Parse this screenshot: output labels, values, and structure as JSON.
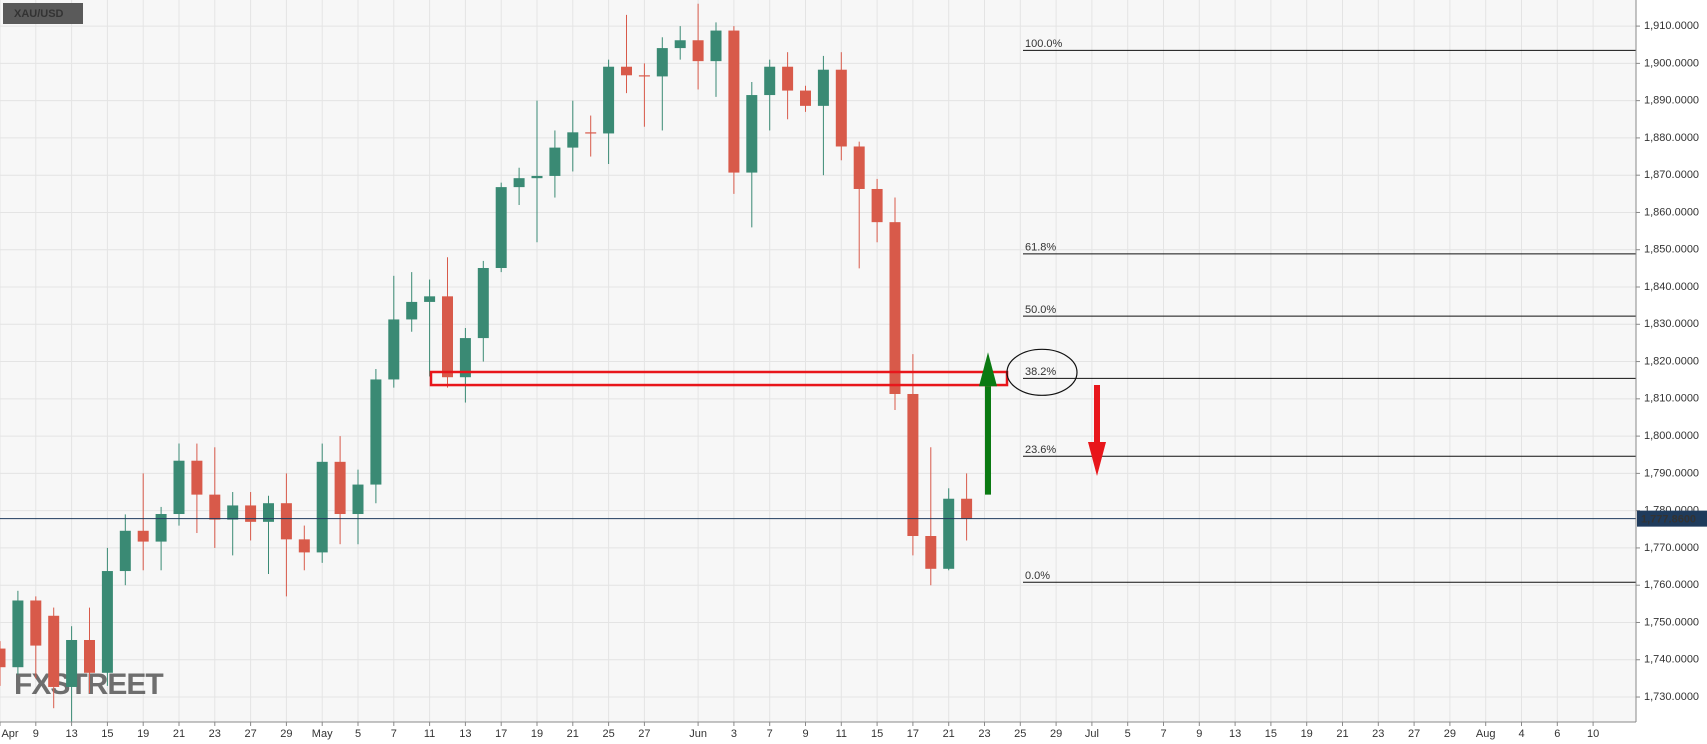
{
  "chart_data": {
    "type": "candlestick",
    "symbol": "XAU/USD",
    "watermark": [
      "FX",
      "STREET"
    ],
    "categories": [
      "Apr",
      null,
      "9",
      null,
      "13",
      null,
      "15",
      null,
      "19",
      null,
      "21",
      null,
      "23",
      null,
      "27",
      null,
      "29",
      null,
      "May",
      null,
      "5",
      null,
      "7",
      null,
      "11",
      null,
      "13",
      null,
      "17",
      null,
      "19",
      null,
      "21",
      null,
      "25",
      null,
      "27",
      null,
      null,
      "Jun",
      null,
      "3",
      null,
      "7",
      null,
      "9",
      null,
      "11",
      null,
      "15",
      null,
      "17",
      null,
      "21",
      null,
      "23",
      null,
      "25",
      null,
      "29",
      null,
      "Jul",
      null,
      "5",
      null,
      "7",
      null,
      "9",
      null,
      "13",
      null,
      "15",
      null,
      "19",
      null,
      "21",
      null,
      "23",
      null,
      "27",
      null,
      "29",
      null,
      "Aug",
      null,
      "4",
      null,
      "6",
      null,
      "10",
      null
    ],
    "open": [
      1743.0,
      1738.0,
      1755.9,
      1751.8,
      1732.7,
      1745.3,
      1736.5,
      1763.8,
      1774.6,
      1771.7,
      1779.1,
      1793.4,
      1784.3,
      1777.6,
      1781.4,
      1777.0,
      1782.0,
      1772.3,
      1768.8,
      1793.1,
      1779.1,
      1787.0,
      1815.2,
      1831.3,
      1836.0,
      1837.5,
      1815.8,
      1826.3,
      1845.1,
      1866.8,
      1869.2,
      1869.8,
      1877.4,
      1881.5,
      1881.2,
      1899.1,
      1896.8,
      1896.5,
      1904.1,
      1906.2,
      1900.6,
      1908.8,
      1870.7,
      1891.5,
      1899.1,
      1892.7,
      1888.6,
      1898.3,
      1877.7,
      1866.3,
      1857.4,
      1811.3,
      1773.2,
      1764.4,
      1783.2,
      null,
      null,
      null,
      null,
      null,
      null,
      null,
      null,
      null,
      null,
      null,
      null,
      null,
      null,
      null,
      null,
      null,
      null,
      null,
      null,
      null,
      null,
      null,
      null,
      null,
      null,
      null,
      null,
      null,
      null,
      null,
      null,
      null,
      null,
      null,
      null
    ],
    "high": [
      1745,
      1758.5,
      1757,
      1754,
      1749,
      1754,
      1770,
      1779,
      1790,
      1781,
      1798,
      1798,
      1797,
      1785,
      1785,
      1784,
      1790,
      1776,
      1798,
      1800,
      1791,
      1818,
      1843,
      1844,
      1842,
      1848,
      1829,
      1847,
      1868,
      1872,
      1890,
      1882,
      1890,
      1886,
      1901,
      1913,
      1900,
      1907,
      1910,
      1916,
      1911,
      1910,
      1895,
      1901,
      1903,
      1894,
      1902,
      1903,
      1879,
      1869,
      1864,
      1822,
      1797,
      1786,
      1790,
      null,
      null,
      null,
      null,
      null,
      null,
      null,
      null,
      null,
      null,
      null,
      null,
      null,
      null,
      null,
      null,
      null,
      null,
      null,
      null,
      null,
      null,
      null,
      null,
      null,
      null,
      null,
      null,
      null,
      null,
      null,
      null,
      null,
      null,
      null,
      null
    ],
    "low": [
      1733,
      1736,
      1735,
      1727,
      1723,
      1731,
      1733,
      1760,
      1764,
      1764,
      1776,
      1774,
      1770,
      1768,
      1772,
      1763,
      1757,
      1764,
      1766,
      1771,
      1771,
      1782,
      1813,
      1828,
      1816,
      1813,
      1809,
      1820,
      1844,
      1862,
      1852,
      1864,
      1871,
      1875,
      1873,
      1892,
      1883,
      1882,
      1901,
      1893,
      1891,
      1865,
      1856,
      1882,
      1885,
      1887,
      1870,
      1874,
      1845,
      1852,
      1807,
      1768,
      1760,
      1764,
      1772,
      null,
      null,
      null,
      null,
      null,
      null,
      null,
      null,
      null,
      null,
      null,
      null,
      null,
      null,
      null,
      null,
      null,
      null,
      null,
      null,
      null,
      null,
      null,
      null,
      null,
      null,
      null,
      null,
      null,
      null,
      null,
      null,
      null,
      null,
      null,
      null
    ],
    "close": [
      1738.0,
      1755.9,
      1743.8,
      1732.7,
      1745.3,
      1736.5,
      1763.8,
      1774.6,
      1771.7,
      1779.1,
      1793.4,
      1784.3,
      1777.6,
      1781.4,
      1777.0,
      1782.0,
      1772.3,
      1768.8,
      1793.1,
      1779.1,
      1787.0,
      1815.2,
      1831.3,
      1836.0,
      1837.5,
      1815.8,
      1826.3,
      1845.1,
      1866.8,
      1869.2,
      1869.8,
      1877.4,
      1881.5,
      1881.2,
      1899.1,
      1896.8,
      1896.5,
      1904.1,
      1906.2,
      1900.6,
      1908.8,
      1870.7,
      1891.5,
      1899.1,
      1892.7,
      1888.6,
      1898.3,
      1877.7,
      1866.3,
      1857.4,
      1811.3,
      1773.2,
      1764.4,
      1783.2,
      1777.9,
      null,
      null,
      null,
      null,
      null,
      null,
      null,
      null,
      null,
      null,
      null,
      null,
      null,
      null,
      null,
      null,
      null,
      null,
      null,
      null,
      null,
      null,
      null,
      null,
      null,
      null,
      null,
      null,
      null,
      null,
      null,
      null,
      null,
      null,
      null,
      null
    ],
    "up_color": "#3a8a74",
    "down_color": "#d85a4a",
    "ylim": [
      1723.3,
      1917.0
    ],
    "yticks": [
      {
        "value": 1730,
        "label": "1,730.0000"
      },
      {
        "value": 1740,
        "label": "1,740.0000"
      },
      {
        "value": 1750,
        "label": "1,750.0000"
      },
      {
        "value": 1760,
        "label": "1,760.0000"
      },
      {
        "value": 1770,
        "label": "1,770.0000"
      },
      {
        "value": 1780,
        "label": "1,780.0000"
      },
      {
        "value": 1790,
        "label": "1,790.0000"
      },
      {
        "value": 1800,
        "label": "1,800.0000"
      },
      {
        "value": 1810,
        "label": "1,810.0000"
      },
      {
        "value": 1820,
        "label": "1,820.0000"
      },
      {
        "value": 1830,
        "label": "1,830.0000"
      },
      {
        "value": 1840,
        "label": "1,840.0000"
      },
      {
        "value": 1850,
        "label": "1,850.0000"
      },
      {
        "value": 1860,
        "label": "1,860.0000"
      },
      {
        "value": 1870,
        "label": "1,870.0000"
      },
      {
        "value": 1880,
        "label": "1,880.0000"
      },
      {
        "value": 1890,
        "label": "1,890.0000"
      },
      {
        "value": 1900,
        "label": "1,900.0000"
      },
      {
        "value": 1910,
        "label": "1,910.0000"
      }
    ],
    "grid": true,
    "last_price": {
      "value": 1777.86,
      "label": "1,777.8600",
      "color": "#1f3b5c"
    },
    "fib_levels": [
      {
        "value": 1903.5,
        "label": "100.0%"
      },
      {
        "value": 1848.9,
        "label": "61.8%"
      },
      {
        "value": 1832.2,
        "label": "50.0%"
      },
      {
        "value": 1815.5,
        "label": "38.2%"
      },
      {
        "value": 1794.6,
        "label": "23.6%"
      },
      {
        "value": 1760.8,
        "label": "0.0%"
      }
    ],
    "zone": [
      1813.7,
      1817.2
    ],
    "arrows": [
      {
        "from": 1784.3,
        "to": 1822.5,
        "color": "#0b7a12"
      },
      {
        "from": 1813.7,
        "to": 1789.3,
        "color": "#e8161b"
      }
    ]
  }
}
